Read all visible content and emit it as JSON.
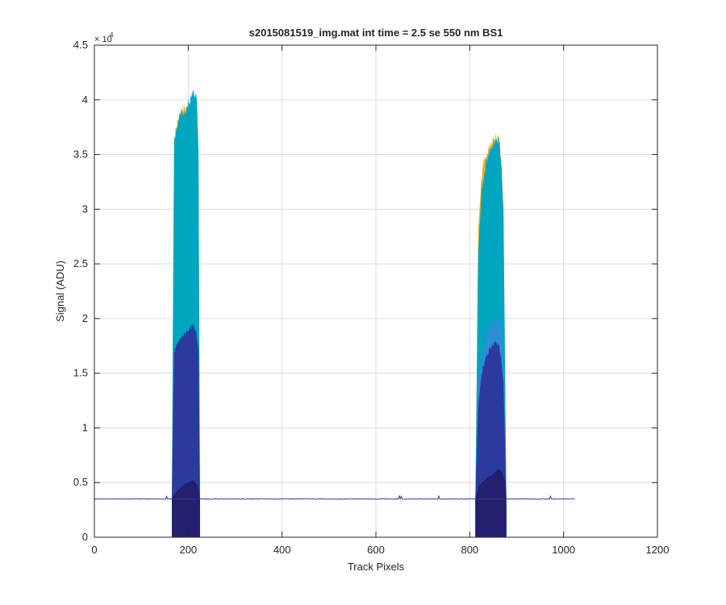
{
  "chart_data": {
    "type": "area",
    "title": "s2015081519_img.mat int time = 2.5 se  550 nm BS1",
    "xlabel": "Track Pixels",
    "ylabel": "Signal (ADU)",
    "exponent_label": "× 10",
    "exponent_power": "4",
    "xlim": [
      0,
      1200
    ],
    "ylim": [
      0,
      45000
    ],
    "xticks": [
      0,
      200,
      400,
      600,
      800,
      1000,
      1200
    ],
    "yticks": [
      0,
      5000,
      10000,
      15000,
      20000,
      25000,
      30000,
      35000,
      40000,
      45000
    ],
    "yticklabels": [
      "0",
      "0.5",
      "1",
      "1.5",
      "2",
      "2.5",
      "3",
      "3.5",
      "4",
      "4.5"
    ],
    "grid": true,
    "baseline": 3500,
    "baseline_xrange": [
      0,
      1024
    ],
    "series": [
      {
        "color": "#edb120",
        "peaks": [
          {
            "x": [
              165,
              170,
              180,
              190,
              200,
              210,
              218,
              222,
              225
            ],
            "y": [
              3500,
              36500,
              38500,
              39000,
              39500,
              40500,
              40000,
              35000,
              3500
            ]
          },
          {
            "x": [
              812,
              818,
              825,
              835,
              845,
              855,
              862,
              868,
              872,
              878
            ],
            "y": [
              3500,
              28000,
              33000,
              35000,
              36000,
              36500,
              36500,
              34000,
              30000,
              3500
            ]
          }
        ]
      },
      {
        "color": "#00a5bf",
        "peaks": [
          {
            "x": [
              165,
              170,
              180,
              190,
              200,
              210,
              218,
              222,
              225
            ],
            "y": [
              3500,
              36500,
              38500,
              39000,
              39500,
              40500,
              40000,
              35000,
              3500
            ]
          },
          {
            "x": [
              812,
              818,
              825,
              835,
              845,
              855,
              862,
              868,
              872,
              878
            ],
            "y": [
              3500,
              26000,
              31500,
              34500,
              35500,
              36500,
              36500,
              34000,
              29000,
              3500
            ]
          }
        ]
      },
      {
        "color": "#2a8fd4",
        "peaks": [
          {
            "x": [
              165,
              170,
              180,
              190,
              200,
              210,
              218,
              222,
              225
            ],
            "y": [
              3500,
              8000,
              9000,
              9500,
              9500,
              9000,
              8500,
              7000,
              3500
            ]
          },
          {
            "x": [
              812,
              818,
              825,
              835,
              845,
              855,
              862,
              868,
              872,
              878
            ],
            "y": [
              3500,
              14000,
              16500,
              18500,
              19500,
              20000,
              20000,
              19000,
              17000,
              3500
            ]
          }
        ]
      },
      {
        "color": "#2c3a9e",
        "peaks": [
          {
            "x": [
              165,
              170,
              180,
              190,
              200,
              210,
              218,
              222,
              225
            ],
            "y": [
              3500,
              17000,
              18000,
              18500,
              19000,
              19500,
              18500,
              17000,
              3500
            ]
          },
          {
            "x": [
              812,
              818,
              825,
              835,
              845,
              855,
              862,
              868,
              872,
              878
            ],
            "y": [
              3500,
              12000,
              15000,
              16500,
              17500,
              18000,
              17500,
              16000,
              14000,
              3500
            ]
          }
        ]
      },
      {
        "color": "#241f6e",
        "peaks": [
          {
            "x": [
              165,
              175,
              190,
              200,
              210,
              220,
              225
            ],
            "y": [
              3500,
              4200,
              4800,
              5000,
              5200,
              4800,
              3500
            ]
          },
          {
            "x": [
              812,
              820,
              830,
              840,
              850,
              860,
              868,
              875,
              878
            ],
            "y": [
              3500,
              4800,
              5200,
              5500,
              5800,
              6200,
              6000,
              5200,
              3500
            ]
          }
        ]
      }
    ]
  }
}
